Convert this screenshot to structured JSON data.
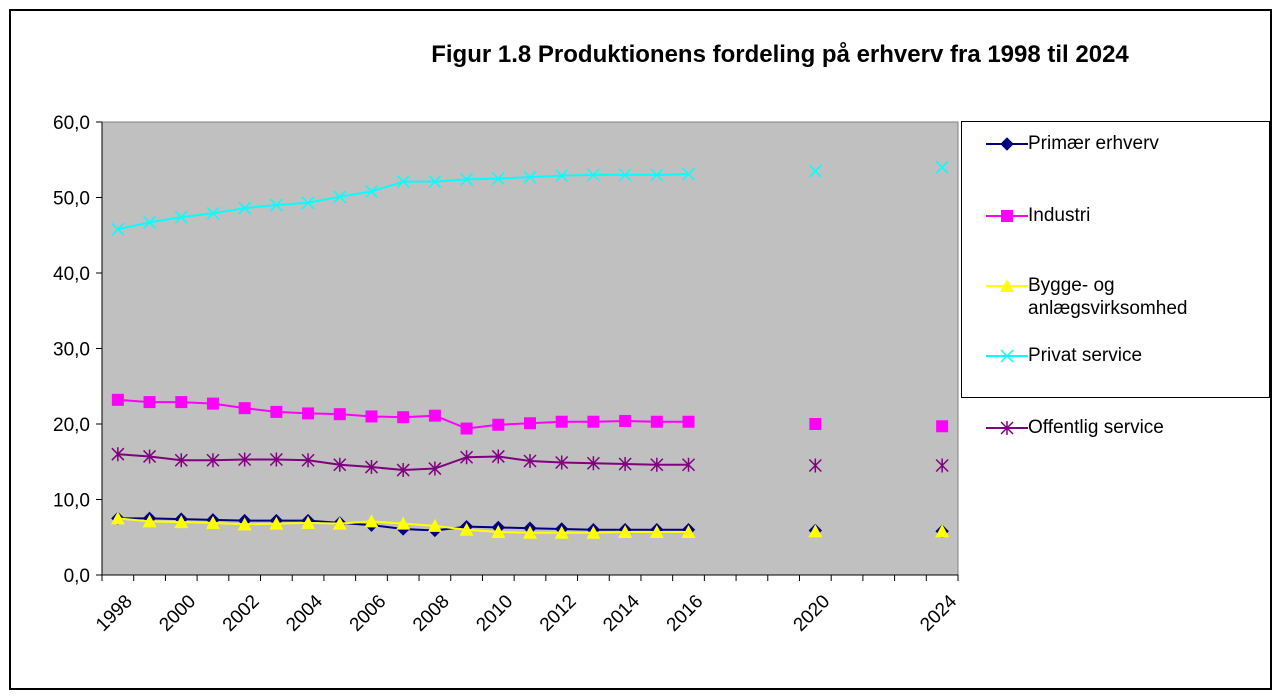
{
  "chart_data": {
    "type": "line",
    "title": "Figur 1.8 Produktionens fordeling på erhverv fra 1998 til 2024",
    "categories": [
      "1998",
      null,
      "2000",
      null,
      "2002",
      null,
      "2004",
      null,
      "2006",
      null,
      "2008",
      null,
      "2010",
      null,
      "2012",
      null,
      "2014",
      null,
      "2016",
      null,
      null,
      null,
      "2020",
      null,
      null,
      null,
      "2024"
    ],
    "ylim": [
      0,
      60
    ],
    "yticks": [
      {
        "value": 0,
        "label": "0,0"
      },
      {
        "value": 10,
        "label": "10,0"
      },
      {
        "value": 20,
        "label": "20,0"
      },
      {
        "value": 30,
        "label": "30,0"
      },
      {
        "value": 40,
        "label": "40,0"
      },
      {
        "value": 50,
        "label": "50,0"
      },
      {
        "value": 60,
        "label": "60,0"
      }
    ],
    "grid": false,
    "legend": "right",
    "plot_background": "#c0c0c0",
    "series": [
      {
        "name": "Primær erhverv",
        "color": "#000080",
        "marker": "diamond",
        "values": [
          7.5,
          7.5,
          7.4,
          7.3,
          7.2,
          7.2,
          7.2,
          6.9,
          6.6,
          6.1,
          5.9,
          6.4,
          6.3,
          6.2,
          6.1,
          6.0,
          6.0,
          6.0,
          6.0,
          null,
          null,
          null,
          5.9,
          null,
          null,
          null,
          5.8
        ]
      },
      {
        "name": "Industri",
        "color": "#ff00ff",
        "marker": "square",
        "values": [
          23.2,
          22.9,
          22.9,
          22.7,
          22.1,
          21.6,
          21.4,
          21.3,
          21.0,
          20.9,
          21.1,
          19.4,
          19.9,
          20.1,
          20.3,
          20.3,
          20.4,
          20.3,
          20.3,
          null,
          null,
          null,
          20.0,
          null,
          null,
          null,
          19.7
        ]
      },
      {
        "name": "Bygge- og anlægsvirksomhed",
        "color": "#ffff00",
        "marker": "triangle",
        "values": [
          7.5,
          7.1,
          7.0,
          6.9,
          6.7,
          6.8,
          6.9,
          6.8,
          7.1,
          6.8,
          6.5,
          6.0,
          5.7,
          5.6,
          5.6,
          5.6,
          5.7,
          5.7,
          5.7,
          null,
          null,
          null,
          5.8,
          null,
          null,
          null,
          5.8
        ]
      },
      {
        "name": "Privat service",
        "color": "#00ffff",
        "marker": "x",
        "values": [
          45.8,
          46.7,
          47.4,
          47.9,
          48.6,
          49.0,
          49.3,
          50.1,
          50.8,
          52.1,
          52.1,
          52.4,
          52.5,
          52.7,
          52.9,
          53.0,
          53.0,
          53.0,
          53.1,
          null,
          null,
          null,
          53.5,
          null,
          null,
          null,
          54.0
        ]
      },
      {
        "name": "Offentlig service",
        "color": "#800080",
        "marker": "asterisk",
        "values": [
          16.0,
          15.7,
          15.2,
          15.2,
          15.3,
          15.3,
          15.2,
          14.6,
          14.3,
          13.9,
          14.1,
          15.6,
          15.7,
          15.1,
          14.9,
          14.8,
          14.7,
          14.6,
          14.6,
          null,
          null,
          null,
          14.5,
          null,
          null,
          null,
          14.5
        ]
      }
    ]
  }
}
